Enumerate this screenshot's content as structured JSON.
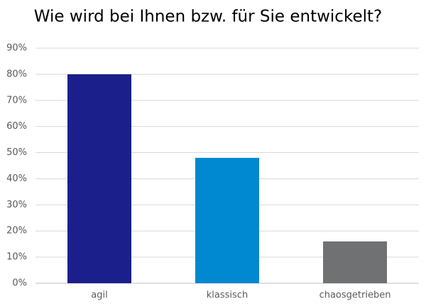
{
  "chart_data": {
    "type": "bar",
    "title": "Wie wird bei Ihnen bzw. für Sie entwickelt?",
    "categories": [
      "agil",
      "klassisch",
      "chaosgetrieben"
    ],
    "values": [
      80,
      48,
      16
    ],
    "colors": [
      "#1a1f8c",
      "#0088d1",
      "#707173"
    ],
    "ylim": [
      0,
      90
    ],
    "yticks": [
      {
        "value": 0,
        "label": "0%"
      },
      {
        "value": 10,
        "label": "10%"
      },
      {
        "value": 20,
        "label": "20%"
      },
      {
        "value": 30,
        "label": "30%"
      },
      {
        "value": 40,
        "label": "40%"
      },
      {
        "value": 50,
        "label": "50%"
      },
      {
        "value": 60,
        "label": "60%"
      },
      {
        "value": 70,
        "label": "70%"
      },
      {
        "value": 80,
        "label": "80%"
      },
      {
        "value": 90,
        "label": "90%"
      }
    ],
    "grid": true
  }
}
